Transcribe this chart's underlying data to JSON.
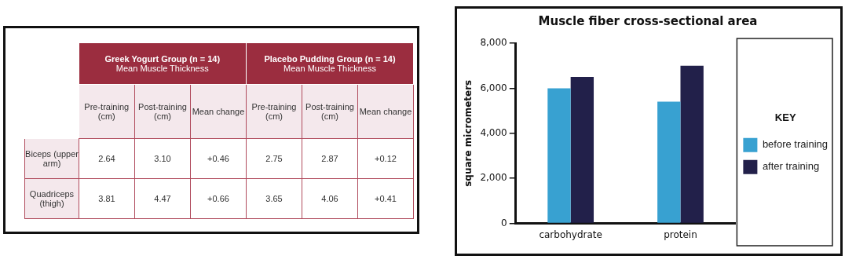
{
  "chart_data": [
    {
      "type": "other",
      "categories": [
        "Pre-training (cm)",
        "Post-training (cm)",
        "Mean change",
        "Pre-training (cm)",
        "Post-training (cm)",
        "Mean change"
      ],
      "y_categories": [
        "Biceps (upper arm)",
        "Quadriceps (thigh)"
      ],
      "cell_labels": [
        [
          "2.64",
          "3.10",
          "+0.46",
          "2.75",
          "2.87",
          "+0.12"
        ],
        [
          "3.81",
          "4.47",
          "+0.66",
          "3.65",
          "4.06",
          "+0.41"
        ]
      ],
      "annotations": [
        "Greek Yogurt Group (n = 14)",
        "Mean Muscle Thickness",
        "Placebo Pudding Group (n = 14)",
        "Mean Muscle Thickness"
      ]
    },
    {
      "type": "bar",
      "title": "Muscle fiber cross-sectional area",
      "ylabel": "square micrometers",
      "categories": [
        "carbohydrate",
        "protein"
      ],
      "series": [
        {
          "name": "before training",
          "color": "#38a1d1",
          "values": [
            6000,
            5400
          ]
        },
        {
          "name": "after training",
          "color": "#22204a",
          "values": [
            6500,
            7000
          ]
        }
      ],
      "ylim": [
        0,
        8000
      ],
      "yticks": [
        {
          "value": 0,
          "label": "0"
        },
        {
          "value": 2000,
          "label": "2,000"
        },
        {
          "value": 4000,
          "label": "4,000"
        },
        {
          "value": 6000,
          "label": "6,000"
        },
        {
          "value": 8000,
          "label": "8,000"
        }
      ],
      "grid": false,
      "legend": "right",
      "legend_title": "KEY"
    }
  ]
}
